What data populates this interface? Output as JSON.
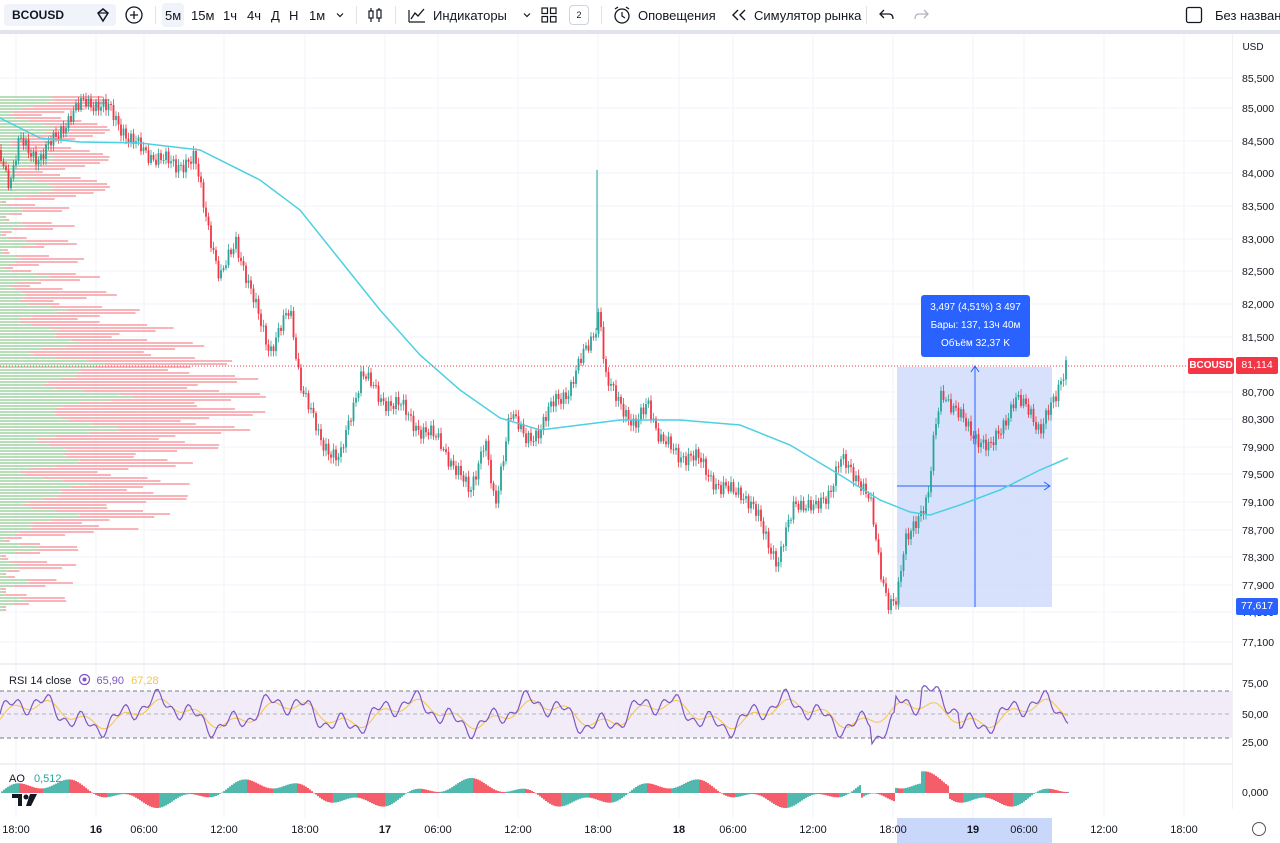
{
  "toolbar": {
    "symbol": "BCOUSD",
    "intervals": [
      "5м",
      "15м",
      "1ч",
      "4ч",
      "Д",
      "Н",
      "1м"
    ],
    "active_interval": "5м",
    "indicators_label": "Индикаторы",
    "layouts_count": "2",
    "alerts_label": "Оповещения",
    "replay_label": "Симулятор рынка",
    "layout_name": "Без назван"
  },
  "price_scale": {
    "currency": "USD",
    "ticks": [
      "85,500",
      "85,000",
      "84,500",
      "84,000",
      "83,500",
      "83,000",
      "82,500",
      "82,000",
      "81,500",
      "80,700",
      "80,300",
      "79,900",
      "79,500",
      "79,100",
      "78,700",
      "78,300",
      "77,900",
      "77,500",
      "77,100"
    ],
    "last_symbol_tag": "BCOUSD",
    "last_price": "81,114",
    "range_low_price": "77,617"
  },
  "measure_tooltip": {
    "line1": "3,497 (4,51%) 3 497",
    "line2": "Бары: 137, 13ч 40м",
    "line3": "Объём 32,37 K"
  },
  "rsi": {
    "label": "RSI 14 close",
    "value1": "65,90",
    "value2": "67,28",
    "value1_color": "#7e57c2",
    "value2_color": "#f7c548",
    "ticks": [
      "75,00",
      "50,00",
      "25,00"
    ]
  },
  "ao": {
    "label": "AO",
    "value": "0,512",
    "value_color": "#26a69a",
    "tick": "0,000"
  },
  "time_axis": {
    "labels": [
      "18:00",
      "16",
      "06:00",
      "12:00",
      "18:00",
      "17",
      "06:00",
      "12:00",
      "18:00",
      "18",
      "06:00",
      "12:00",
      "18:00",
      "19",
      "06:00",
      "12:00",
      "18:00"
    ]
  },
  "colors": {
    "up": "#26a69a",
    "down": "#f23645",
    "ma": "#4dd0e1",
    "measure_fill": "#c9d7fb",
    "measure_line": "#2962ff"
  }
}
